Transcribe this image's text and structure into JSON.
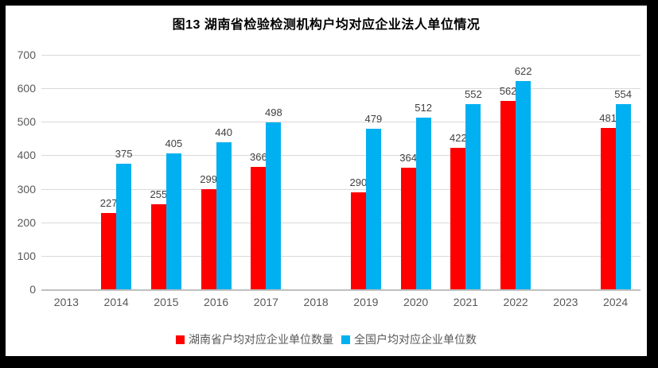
{
  "frame": {
    "border_color": "#000000",
    "background_color": "#ffffff"
  },
  "chart_data": {
    "type": "bar",
    "title": "图13 湖南省检验检测机构户均对应企业法人单位情况",
    "categories": [
      "2013",
      "2014",
      "2015",
      "2016",
      "2017",
      "2018",
      "2019",
      "2020",
      "2021",
      "2022",
      "2023",
      "2024"
    ],
    "series": [
      {
        "name": "湖南省户均对应企业单位数量",
        "color": "#ff0000",
        "values": [
          null,
          227,
          255,
          299,
          366,
          null,
          290,
          364,
          422,
          562,
          null,
          481
        ]
      },
      {
        "name": "全国户均对应企业单位数",
        "color": "#00b0f0",
        "values": [
          null,
          375,
          405,
          440,
          498,
          null,
          479,
          512,
          552,
          622,
          null,
          554
        ]
      }
    ],
    "xlabel": "",
    "ylabel": "",
    "ylim": [
      0,
      700
    ],
    "ytick_step": 100,
    "grid": true,
    "legend_position": "bottom",
    "colors": {
      "gridline": "#d9d9d9",
      "axis_line": "#bfbfbf",
      "tick_text": "#595959",
      "data_label_text": "#404040",
      "title_text": "#000000"
    }
  }
}
